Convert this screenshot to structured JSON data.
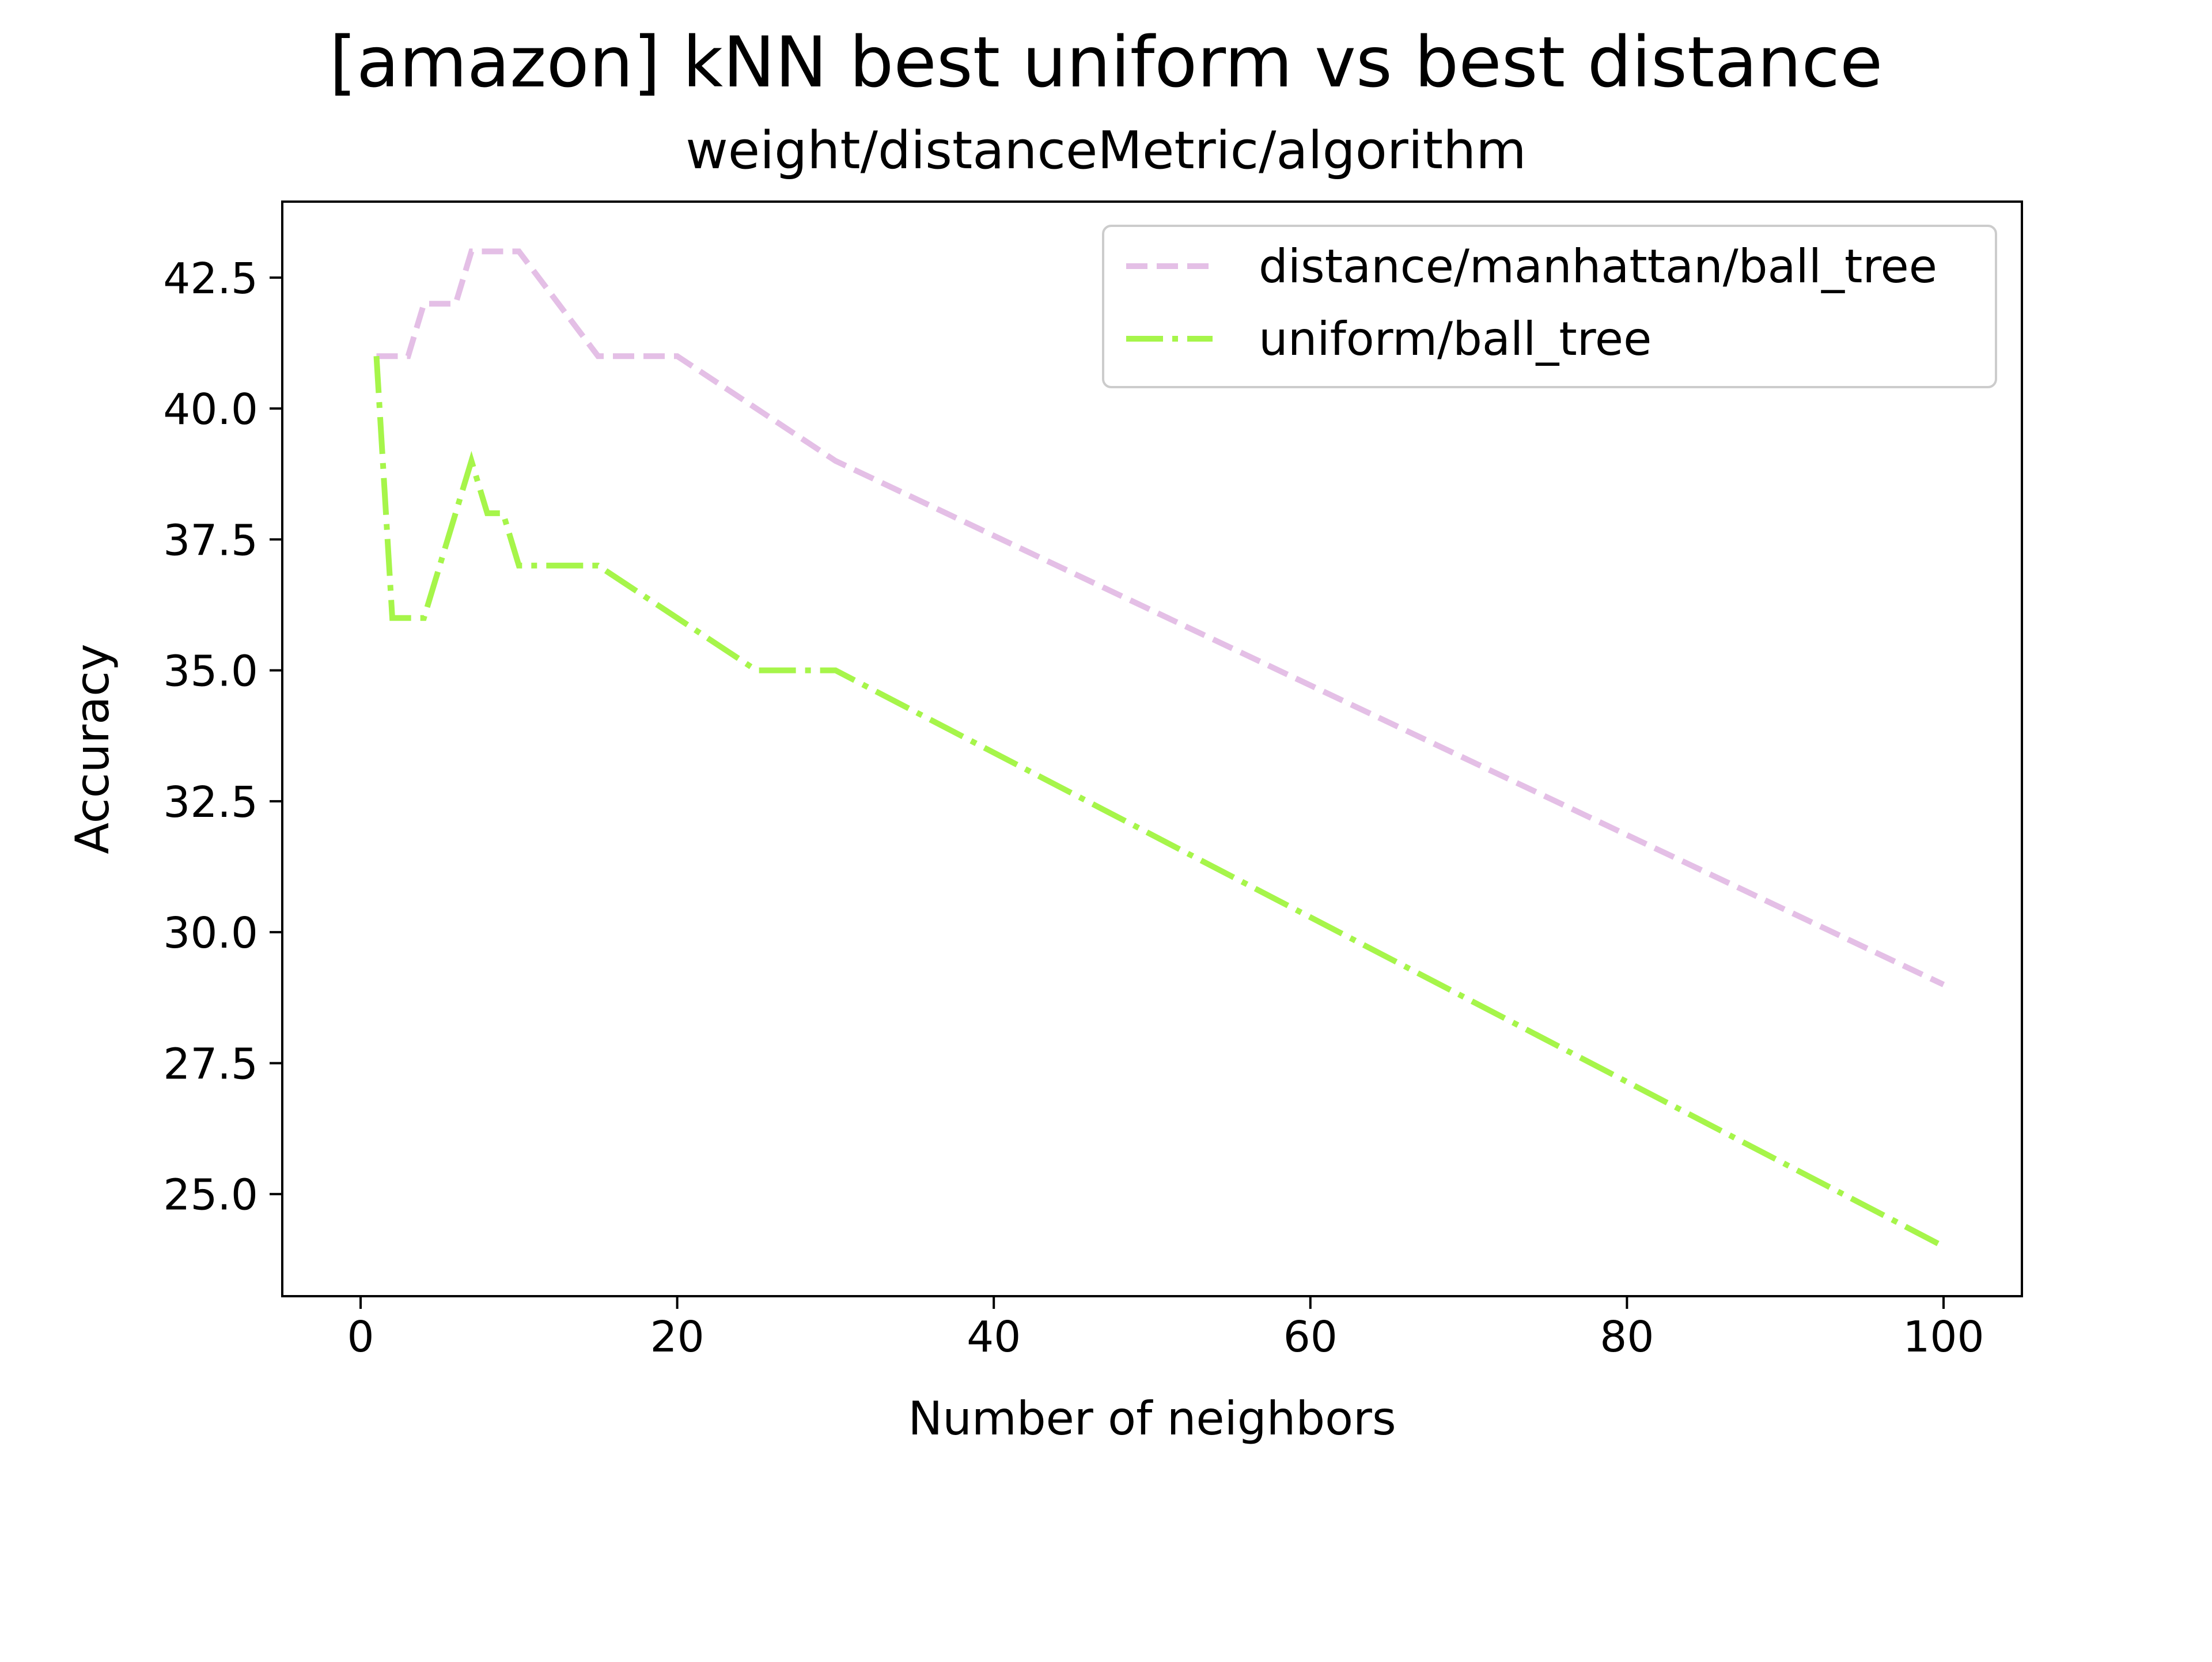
{
  "chart_data": {
    "type": "line",
    "title": "[amazon] kNN best uniform vs best distance",
    "subtitle": "weight/distanceMetric/algorithm",
    "xlabel": "Number of neighbors",
    "ylabel": "Accuracy",
    "xlim": [
      -4.95,
      104.95
    ],
    "ylim": [
      23.05,
      43.95
    ],
    "xticks": [
      0,
      20,
      40,
      60,
      80,
      100
    ],
    "xtick_labels": [
      "0",
      "20",
      "40",
      "60",
      "80",
      "100"
    ],
    "yticks": [
      25.0,
      27.5,
      30.0,
      32.5,
      35.0,
      37.5,
      40.0,
      42.5
    ],
    "ytick_labels": [
      "25.0",
      "27.5",
      "30.0",
      "32.5",
      "35.0",
      "37.5",
      "40.0",
      "42.5"
    ],
    "grid": false,
    "legend_position": "upper right",
    "series": [
      {
        "name": "distance/manhattan/ball_tree",
        "color": "#e4bfe6",
        "linestyle": "dashed",
        "x": [
          1,
          2,
          3,
          4,
          5,
          6,
          7,
          8,
          9,
          10,
          15,
          20,
          25,
          30,
          100
        ],
        "y": [
          41,
          41,
          41,
          42,
          42,
          42,
          43,
          43,
          43,
          43,
          41,
          41,
          40,
          39,
          29
        ]
      },
      {
        "name": "uniform/ball_tree",
        "color": "#a6f54a",
        "linestyle": "dashdot",
        "x": [
          1,
          2,
          3,
          4,
          5,
          6,
          7,
          8,
          9,
          10,
          15,
          20,
          25,
          30,
          100
        ],
        "y": [
          41,
          36,
          36,
          36,
          37,
          38,
          39,
          38,
          38,
          37,
          37,
          36,
          35,
          35,
          24
        ]
      }
    ]
  }
}
